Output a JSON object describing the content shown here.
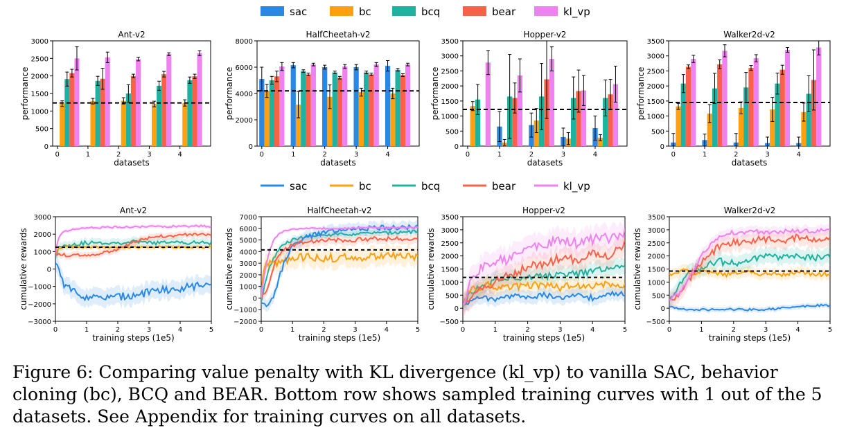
{
  "colors": {
    "sac": "#2a88e5",
    "bc": "#ffa010",
    "bcq": "#20b2a0",
    "bear": "#f86248",
    "kl_vp": "#ee82ee",
    "baseline": "#000000"
  },
  "legend": {
    "entries": [
      "sac",
      "bc",
      "bcq",
      "bear",
      "kl_vp"
    ]
  },
  "caption": {
    "text": "Figure 6: Comparing value penalty with KL divergence (kl_vp) to vanilla SAC, behavior cloning (bc), BCQ and BEAR. Bottom row shows sampled training curves with 1 out of the 5 datasets. See Appendix for training curves on all datasets."
  },
  "chart_data": [
    {
      "type": "bar",
      "title": "Ant-v2",
      "xlabel": "datasets",
      "ylabel": "performance",
      "categories": [
        "0",
        "1",
        "2",
        "3",
        "4"
      ],
      "ylim": [
        0,
        3000
      ],
      "yticks": [
        0,
        500,
        1000,
        1500,
        2000,
        2500,
        3000
      ],
      "baseline": 1230,
      "series": [
        {
          "name": "sac",
          "values": [
            0,
            0,
            0,
            0,
            0
          ],
          "errors": [
            0,
            0,
            0,
            0,
            0
          ]
        },
        {
          "name": "bc",
          "values": [
            1210,
            1280,
            1290,
            1200,
            1230
          ],
          "errors": [
            80,
            80,
            90,
            80,
            90
          ]
        },
        {
          "name": "bcq",
          "values": [
            1910,
            1860,
            1500,
            1720,
            1880
          ],
          "errors": [
            200,
            130,
            250,
            130,
            90
          ]
        },
        {
          "name": "bear",
          "values": [
            2080,
            1920,
            2000,
            2050,
            1990
          ],
          "errors": [
            110,
            300,
            50,
            80,
            60
          ]
        },
        {
          "name": "kl_vp",
          "values": [
            2500,
            2530,
            2480,
            2620,
            2650
          ],
          "errors": [
            330,
            150,
            50,
            40,
            70
          ]
        }
      ]
    },
    {
      "type": "bar",
      "title": "HalfCheetah-v2",
      "xlabel": "datasets",
      "ylabel": "performance",
      "categories": [
        "0",
        "1",
        "2",
        "3",
        "4"
      ],
      "ylim": [
        0,
        8000
      ],
      "yticks": [
        0,
        2000,
        4000,
        6000,
        8000
      ],
      "baseline": 4200,
      "series": [
        {
          "name": "sac",
          "values": [
            5100,
            6150,
            6000,
            6000,
            6100
          ],
          "errors": [
            900,
            200,
            150,
            200,
            400
          ]
        },
        {
          "name": "bc",
          "values": [
            4200,
            3150,
            3750,
            4100,
            4000
          ],
          "errors": [
            500,
            1000,
            900,
            300,
            400
          ]
        },
        {
          "name": "bcq",
          "values": [
            5000,
            5700,
            5600,
            5600,
            5800
          ],
          "errors": [
            300,
            100,
            100,
            100,
            100
          ]
        },
        {
          "name": "bear",
          "values": [
            5300,
            5450,
            5200,
            5450,
            5400
          ],
          "errors": [
            400,
            100,
            100,
            100,
            100
          ]
        },
        {
          "name": "kl_vp",
          "values": [
            6050,
            6200,
            6050,
            6200,
            6200
          ],
          "errors": [
            300,
            100,
            150,
            150,
            100
          ]
        }
      ]
    },
    {
      "type": "bar",
      "title": "Hopper-v2",
      "xlabel": "datasets",
      "ylabel": "performance",
      "categories": [
        "0",
        "1",
        "2",
        "3",
        "4"
      ],
      "ylim": [
        0,
        3500
      ],
      "yticks": [
        0,
        500,
        1000,
        1500,
        2000,
        2500,
        3000,
        3500
      ],
      "baseline": 1220,
      "series": [
        {
          "name": "sac",
          "values": [
            0,
            650,
            700,
            300,
            600
          ],
          "errors": [
            0,
            500,
            400,
            300,
            400
          ]
        },
        {
          "name": "bc",
          "values": [
            1330,
            120,
            850,
            250,
            280
          ],
          "errors": [
            150,
            100,
            400,
            200,
            100
          ]
        },
        {
          "name": "bcq",
          "values": [
            1550,
            1650,
            1650,
            1600,
            1600
          ],
          "errors": [
            500,
            1400,
            1100,
            700,
            600
          ]
        },
        {
          "name": "bear",
          "values": [
            0,
            1600,
            2220,
            1830,
            1720
          ],
          "errors": [
            0,
            500,
            1300,
            700,
            500
          ]
        },
        {
          "name": "kl_vp",
          "values": [
            2780,
            2350,
            2900,
            1850,
            2060
          ],
          "errors": [
            400,
            550,
            400,
            500,
            600
          ]
        }
      ]
    },
    {
      "type": "bar",
      "title": "Walker2d-v2",
      "xlabel": "datasets",
      "ylabel": "performance",
      "categories": [
        "0",
        "1",
        "2",
        "3",
        "4"
      ],
      "ylim": [
        0,
        3500
      ],
      "yticks": [
        0,
        500,
        1000,
        1500,
        2000,
        2500,
        3000,
        3500
      ],
      "baseline": 1450,
      "series": [
        {
          "name": "sac",
          "values": [
            120,
            200,
            120,
            100,
            100
          ],
          "errors": [
            300,
            200,
            300,
            200,
            200
          ]
        },
        {
          "name": "bc",
          "values": [
            1320,
            1080,
            1270,
            1220,
            1130
          ],
          "errors": [
            100,
            300,
            200,
            400,
            300
          ]
        },
        {
          "name": "bcq",
          "values": [
            2080,
            1920,
            1950,
            2080,
            1740
          ],
          "errors": [
            300,
            500,
            500,
            350,
            600
          ]
        },
        {
          "name": "bear",
          "values": [
            2640,
            2720,
            2600,
            2540,
            2200
          ],
          "errors": [
            60,
            150,
            80,
            150,
            1000
          ]
        },
        {
          "name": "kl_vp",
          "values": [
            2900,
            3170,
            2920,
            3200,
            3280
          ],
          "errors": [
            120,
            200,
            120,
            80,
            250
          ]
        }
      ]
    },
    {
      "type": "line",
      "title": "Ant-v2",
      "xlabel": "training steps (1e5)",
      "ylabel": "cumulative rewards",
      "xlim": [
        0,
        5
      ],
      "ylim": [
        -3000,
        3000
      ],
      "xticks": [
        0,
        1,
        2,
        3,
        4,
        5
      ],
      "yticks": [
        -3000,
        -2000,
        -1000,
        0,
        1000,
        2000,
        3000
      ],
      "baseline": 1250,
      "x": [
        0,
        0.1,
        0.25,
        0.5,
        0.75,
        1,
        1.5,
        2,
        2.5,
        3,
        3.5,
        4,
        4.5,
        5
      ],
      "series": [
        {
          "name": "sac",
          "band": 500,
          "values": [
            300,
            100,
            -800,
            -1200,
            -1450,
            -1600,
            -1700,
            -1600,
            -1500,
            -1350,
            -1200,
            -1100,
            -950,
            -800
          ]
        },
        {
          "name": "bc",
          "band": 150,
          "values": [
            800,
            1200,
            1250,
            1250,
            1280,
            1250,
            1250,
            1250,
            1260,
            1250,
            1250,
            1260,
            1250,
            1250
          ]
        },
        {
          "name": "bcq",
          "band": 250,
          "values": [
            800,
            1200,
            1350,
            1400,
            1450,
            1500,
            1500,
            1500,
            1550,
            1500,
            1500,
            1550,
            1500,
            1500
          ]
        },
        {
          "name": "bear",
          "band": 200,
          "values": [
            900,
            850,
            800,
            800,
            800,
            820,
            900,
            1100,
            1500,
            1800,
            1900,
            1950,
            2000,
            2000
          ]
        },
        {
          "name": "kl_vp",
          "band": 120,
          "values": [
            900,
            1800,
            2100,
            2250,
            2300,
            2350,
            2380,
            2400,
            2420,
            2430,
            2440,
            2450,
            2460,
            2450
          ]
        }
      ]
    },
    {
      "type": "line",
      "title": "HalfCheetah-v2",
      "xlabel": "training steps (1e5)",
      "ylabel": "cumulative rewards",
      "xlim": [
        0,
        5
      ],
      "ylim": [
        -2000,
        7000
      ],
      "xticks": [
        0,
        1,
        2,
        3,
        4,
        5
      ],
      "yticks": [
        -2000,
        -1000,
        0,
        1000,
        2000,
        3000,
        4000,
        5000,
        6000,
        7000
      ],
      "baseline": 4150,
      "x": [
        0,
        0.1,
        0.25,
        0.4,
        0.6,
        0.8,
        1,
        1.5,
        2,
        2.5,
        3,
        3.5,
        4,
        4.5,
        5
      ],
      "series": [
        {
          "name": "sac",
          "band": 500,
          "values": [
            -300,
            -600,
            -500,
            0,
            2000,
            3500,
            4500,
            5300,
            5600,
            5800,
            5900,
            6000,
            6050,
            6100,
            6100
          ]
        },
        {
          "name": "bc",
          "band": 800,
          "values": [
            0,
            3000,
            3000,
            2900,
            3000,
            3300,
            3500,
            3500,
            3400,
            3500,
            3600,
            3500,
            3600,
            3500,
            3600
          ]
        },
        {
          "name": "bcq",
          "band": 300,
          "values": [
            -300,
            1000,
            2500,
            3500,
            4300,
            4700,
            5000,
            5300,
            5400,
            5500,
            5500,
            5600,
            5600,
            5700,
            5700
          ]
        },
        {
          "name": "bear",
          "band": 400,
          "values": [
            0,
            500,
            1000,
            2800,
            3800,
            4200,
            4600,
            4900,
            5000,
            5000,
            5000,
            5100,
            5100,
            5100,
            5100
          ]
        },
        {
          "name": "kl_vp",
          "band": 150,
          "values": [
            0,
            2000,
            4000,
            5000,
            5600,
            5800,
            5900,
            6000,
            6000,
            6000,
            6050,
            6050,
            6050,
            6050,
            6050
          ]
        }
      ]
    },
    {
      "type": "line",
      "title": "Hopper-v2",
      "xlabel": "training steps (1e5)",
      "ylabel": "cumulative rewards",
      "xlim": [
        0,
        5
      ],
      "ylim": [
        -500,
        3500
      ],
      "xticks": [
        0,
        1,
        2,
        3,
        4,
        5
      ],
      "yticks": [
        -500,
        0,
        500,
        1000,
        1500,
        2000,
        2500,
        3000,
        3500
      ],
      "baseline": 1180,
      "x": [
        0,
        0.25,
        0.5,
        0.75,
        1,
        1.5,
        2,
        2.5,
        3,
        3.5,
        4,
        4.5,
        5
      ],
      "series": [
        {
          "name": "sac",
          "band": 250,
          "values": [
            100,
            300,
            400,
            350,
            300,
            450,
            400,
            500,
            350,
            500,
            400,
            600,
            550
          ]
        },
        {
          "name": "bc",
          "band": 300,
          "values": [
            100,
            800,
            600,
            900,
            750,
            800,
            900,
            850,
            800,
            900,
            850,
            950,
            900
          ]
        },
        {
          "name": "bcq",
          "band": 300,
          "values": [
            100,
            600,
            800,
            900,
            1050,
            1100,
            1200,
            1200,
            1300,
            1300,
            1400,
            1500,
            1600
          ]
        },
        {
          "name": "bear",
          "band": 400,
          "values": [
            0,
            400,
            700,
            900,
            1000,
            1300,
            1600,
            1700,
            1900,
            1850,
            2100,
            2000,
            2500
          ]
        },
        {
          "name": "kl_vp",
          "band": 450,
          "values": [
            100,
            1000,
            1500,
            1700,
            1800,
            1900,
            2300,
            2400,
            2600,
            2500,
            2600,
            2700,
            2900
          ]
        }
      ]
    },
    {
      "type": "line",
      "title": "Walker2d-v2",
      "xlabel": "training steps (1e5)",
      "ylabel": "cumulative rewards",
      "xlim": [
        0,
        5
      ],
      "ylim": [
        -500,
        3500
      ],
      "xticks": [
        0,
        1,
        2,
        3,
        4,
        5
      ],
      "yticks": [
        -500,
        0,
        500,
        1000,
        1500,
        2000,
        2500,
        3000,
        3500
      ],
      "baseline": 1420,
      "x": [
        0,
        0.25,
        0.5,
        0.75,
        1,
        1.5,
        2,
        2.5,
        3,
        3.5,
        4,
        4.5,
        5
      ],
      "series": [
        {
          "name": "sac",
          "band": 100,
          "values": [
            50,
            0,
            -50,
            -50,
            -50,
            -50,
            -50,
            -50,
            -50,
            0,
            50,
            100,
            100
          ]
        },
        {
          "name": "bc",
          "band": 200,
          "values": [
            1300,
            1400,
            1500,
            1300,
            1400,
            1300,
            1300,
            1400,
            1300,
            1300,
            1400,
            1300,
            1300
          ]
        },
        {
          "name": "bcq",
          "band": 300,
          "values": [
            400,
            800,
            1200,
            1400,
            1600,
            1800,
            1700,
            1800,
            2000,
            1900,
            2000,
            1900,
            1950
          ]
        },
        {
          "name": "bear",
          "band": 300,
          "values": [
            300,
            400,
            800,
            1400,
            1800,
            2300,
            2500,
            2600,
            2650,
            2600,
            2700,
            2600,
            2600
          ]
        },
        {
          "name": "kl_vp",
          "band": 200,
          "values": [
            300,
            500,
            900,
            1400,
            2000,
            2700,
            2900,
            2950,
            2900,
            2950,
            2950,
            2950,
            2950
          ]
        }
      ]
    }
  ]
}
